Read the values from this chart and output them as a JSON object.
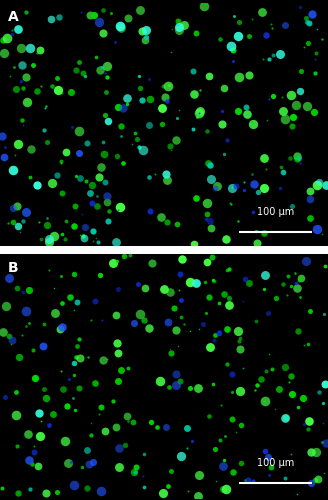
{
  "fig_width": 3.28,
  "fig_height": 5.0,
  "dpi": 100,
  "bg_color": "#000000",
  "panel_A_label": "A",
  "panel_B_label": "B",
  "scale_bar_text": "100 μm",
  "label_color": "#ffffff",
  "label_fontsize": 10,
  "scale_fontsize": 7,
  "separator_color": "#ffffff",
  "n_green_A": 180,
  "n_cyan_A": 70,
  "n_blue_A": 45,
  "n_green_B": 200,
  "n_cyan_B": 20,
  "n_blue_B": 50,
  "green_color": "#00dd00",
  "green_bright": "#44ff44",
  "cyan_color": "#00ccaa",
  "cyan_bright": "#33ffdd",
  "blue_color": "#1133ee",
  "blue_bright": "#2255ff",
  "min_size_small": 1.0,
  "max_size_small": 4.5,
  "min_size_large": 4.5,
  "max_size_large": 7.0
}
